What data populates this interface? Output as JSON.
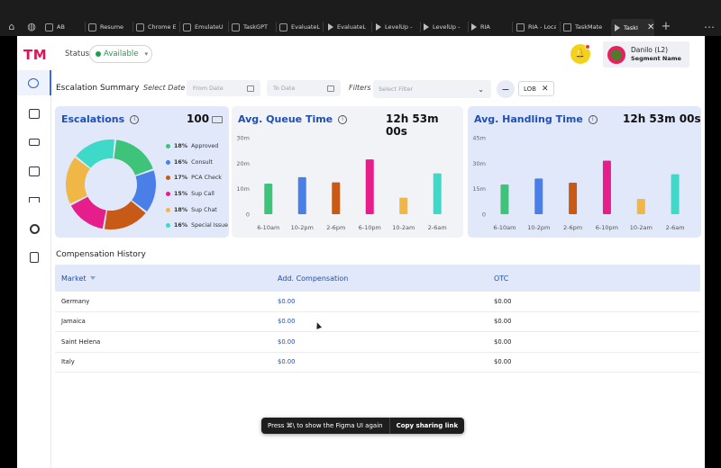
{
  "tabs": [
    {
      "label": "AB"
    },
    {
      "label": "Resume"
    },
    {
      "label": "Chrome E"
    },
    {
      "label": "EmulateU"
    },
    {
      "label": "TaskGPT"
    },
    {
      "label": "EvaluateL"
    },
    {
      "label": "EvaluateL"
    },
    {
      "label": "LevelUp -"
    },
    {
      "label": "LevelUp -"
    },
    {
      "label": "RIA"
    },
    {
      "label": "RIA - Loca"
    },
    {
      "label": "TaskMate"
    },
    {
      "label": "TaskI"
    }
  ],
  "header": {
    "logo": "TM",
    "status_label": "Status",
    "status_value": "Available",
    "user_name": "Danilo (L2)",
    "user_segment": "Segment Name"
  },
  "filters": {
    "title": "Escalation Summary",
    "select_date_label": "Select Date",
    "from_placeholder": "From Date",
    "to_placeholder": "To Date",
    "filters_label": "Filters",
    "filter_placeholder": "Select Filter",
    "chip": "LOB"
  },
  "escalations": {
    "title": "Escalations",
    "total": "100",
    "legend": [
      {
        "pct": "18%",
        "label": "Approved",
        "color": "#3ec47a"
      },
      {
        "pct": "16%",
        "label": "Consult",
        "color": "#4a7fe8"
      },
      {
        "pct": "17%",
        "label": "PCA Check",
        "color": "#c75a16"
      },
      {
        "pct": "15%",
        "label": "Sup Call",
        "color": "#e61e8c"
      },
      {
        "pct": "18%",
        "label": "Sup Chat",
        "color": "#f0b646"
      },
      {
        "pct": "16%",
        "label": "Special Issue",
        "color": "#3fd9c9"
      }
    ]
  },
  "queue": {
    "title": "Avg. Queue Time",
    "metric": "12h 53m 00s"
  },
  "handling": {
    "title": "Avg. Handling Time",
    "metric": "12h 53m 00s"
  },
  "chart_data": [
    {
      "type": "pie",
      "title": "Escalations",
      "categories": [
        "Approved",
        "Consult",
        "PCA Check",
        "Sup Call",
        "Sup Chat",
        "Special Issue"
      ],
      "values": [
        18,
        16,
        17,
        15,
        18,
        16
      ],
      "colors": [
        "#3ec47a",
        "#4a7fe8",
        "#c75a16",
        "#e61e8c",
        "#f0b646",
        "#3fd9c9"
      ],
      "legend": "right"
    },
    {
      "type": "bar",
      "title": "Avg. Queue Time",
      "categories": [
        "6-10am",
        "10-2pm",
        "2-6pm",
        "6-10pm",
        "10-2am",
        "2-6am"
      ],
      "values": [
        12,
        14.5,
        12.5,
        21.5,
        6.5,
        16
      ],
      "colors": [
        "#3ec47a",
        "#4a7fe8",
        "#c75a16",
        "#e61e8c",
        "#f0b646",
        "#3fd9c9"
      ],
      "yticks": [
        "0",
        "10m",
        "20m",
        "30m"
      ],
      "ylim": [
        0,
        30
      ]
    },
    {
      "type": "bar",
      "title": "Avg. Handling Time",
      "categories": [
        "6-10am",
        "10-2pm",
        "2-6pm",
        "6-10pm",
        "10-2am",
        "2-6am"
      ],
      "values": [
        17.5,
        21,
        18.5,
        31.5,
        9,
        23.5
      ],
      "colors": [
        "#3ec47a",
        "#4a7fe8",
        "#c75a16",
        "#e61e8c",
        "#f0b646",
        "#3fd9c9"
      ],
      "yticks": [
        "0",
        "15m",
        "30m",
        "45m"
      ],
      "ylim": [
        0,
        45
      ]
    }
  ],
  "compensation": {
    "title": "Compensation History",
    "columns": [
      "Market",
      "Add. Compensation",
      "OTC"
    ],
    "rows": [
      {
        "market": "Germany",
        "add": "$0.00",
        "otc": "$0.00"
      },
      {
        "market": "Jamaica",
        "add": "$0.00",
        "otc": "$0.00"
      },
      {
        "market": "Saint Helena",
        "add": "$0.00",
        "otc": "$0.00"
      },
      {
        "market": "Italy",
        "add": "$0.00",
        "otc": "$0.00"
      }
    ]
  },
  "toast": {
    "message": "Press ⌘\\ to show the Figma UI again",
    "action": "Copy sharing link"
  }
}
